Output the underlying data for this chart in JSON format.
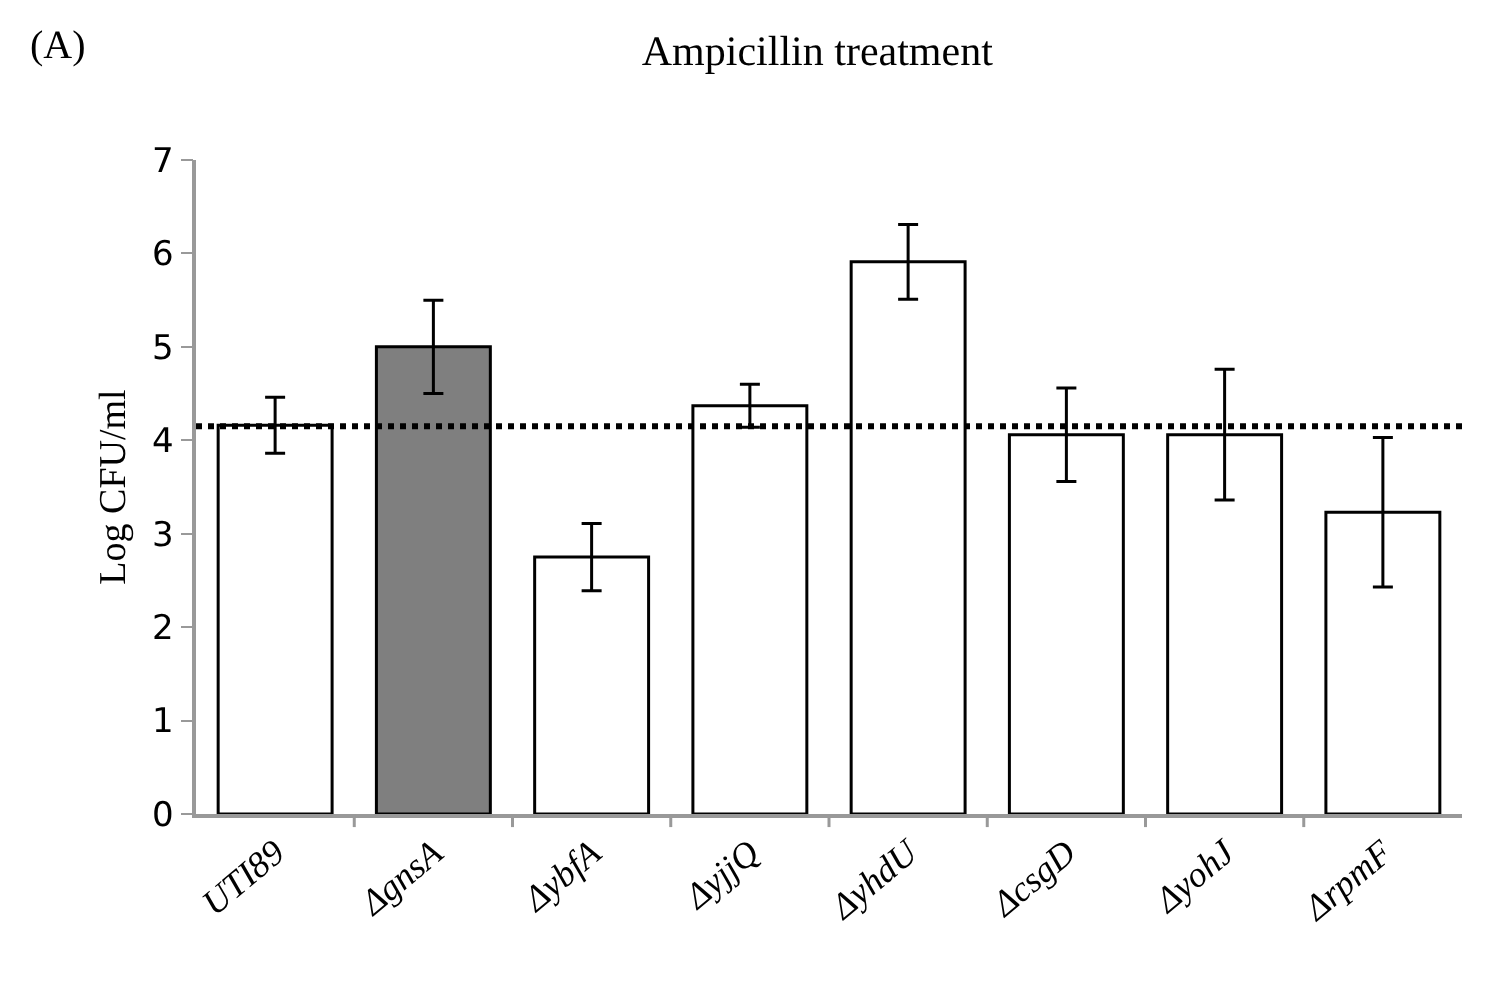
{
  "chart_data": {
    "type": "bar",
    "title": "Ampicillin treatment",
    "ylabel": "Log CFU/ml",
    "annotations": [
      "(A)"
    ],
    "categories": [
      "UTI89",
      "ΔgnsA",
      "ΔybfA",
      "ΔyjjQ",
      "ΔyhdU",
      "ΔcsgD",
      "ΔyohJ",
      "ΔrpmF"
    ],
    "values": [
      4.16,
      5.0,
      2.75,
      4.37,
      5.91,
      4.06,
      4.06,
      3.23
    ],
    "errors": [
      0.3,
      0.5,
      0.36,
      0.23,
      0.4,
      0.5,
      0.7,
      0.8
    ],
    "colors": [
      "#ffffff",
      "#7f7f7f",
      "#ffffff",
      "#ffffff",
      "#ffffff",
      "#ffffff",
      "#ffffff",
      "#ffffff"
    ],
    "ylim": [
      0,
      7
    ],
    "yticks": [
      0,
      1,
      2,
      3,
      4,
      5,
      6,
      7
    ],
    "grid": false,
    "ref_lines": [
      {
        "axis": "y",
        "value": 4.15,
        "line_style": "dotted",
        "color": "#000000"
      }
    ]
  }
}
